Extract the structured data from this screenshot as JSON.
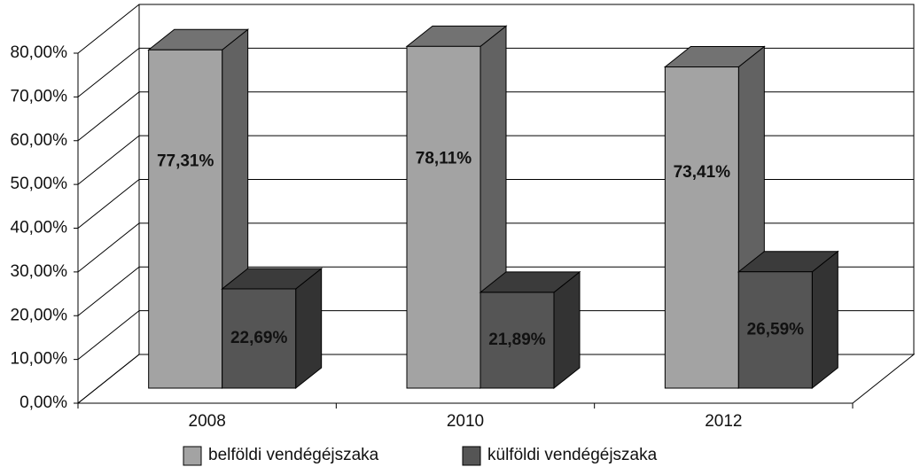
{
  "chart_data": {
    "type": "bar3d",
    "categories": [
      "2008",
      "2010",
      "2012"
    ],
    "series": [
      {
        "name": "belföldi vendégéjszaka",
        "color": "#a3a3a3",
        "values": [
          77.31,
          78.11,
          73.41
        ],
        "value_labels": [
          "77,31%",
          "78,11%",
          "73,41%"
        ]
      },
      {
        "name": "külföldi vendégéjszaka",
        "color": "#555555",
        "values": [
          22.69,
          21.89,
          26.59
        ],
        "value_labels": [
          "22,69%",
          "21,89%",
          "26,59%"
        ]
      }
    ],
    "ylim": [
      0,
      80
    ],
    "yticks": [
      {
        "value": 0,
        "label": "0,00%"
      },
      {
        "value": 10,
        "label": "10,00%"
      },
      {
        "value": 20,
        "label": "20,00%"
      },
      {
        "value": 30,
        "label": "30,00%"
      },
      {
        "value": 40,
        "label": "40,00%"
      },
      {
        "value": 50,
        "label": "50,00%"
      },
      {
        "value": 60,
        "label": "60,00%"
      },
      {
        "value": 70,
        "label": "70,00%"
      },
      {
        "value": 80,
        "label": "80,00%"
      }
    ],
    "grid": true,
    "legend": "bottom"
  }
}
